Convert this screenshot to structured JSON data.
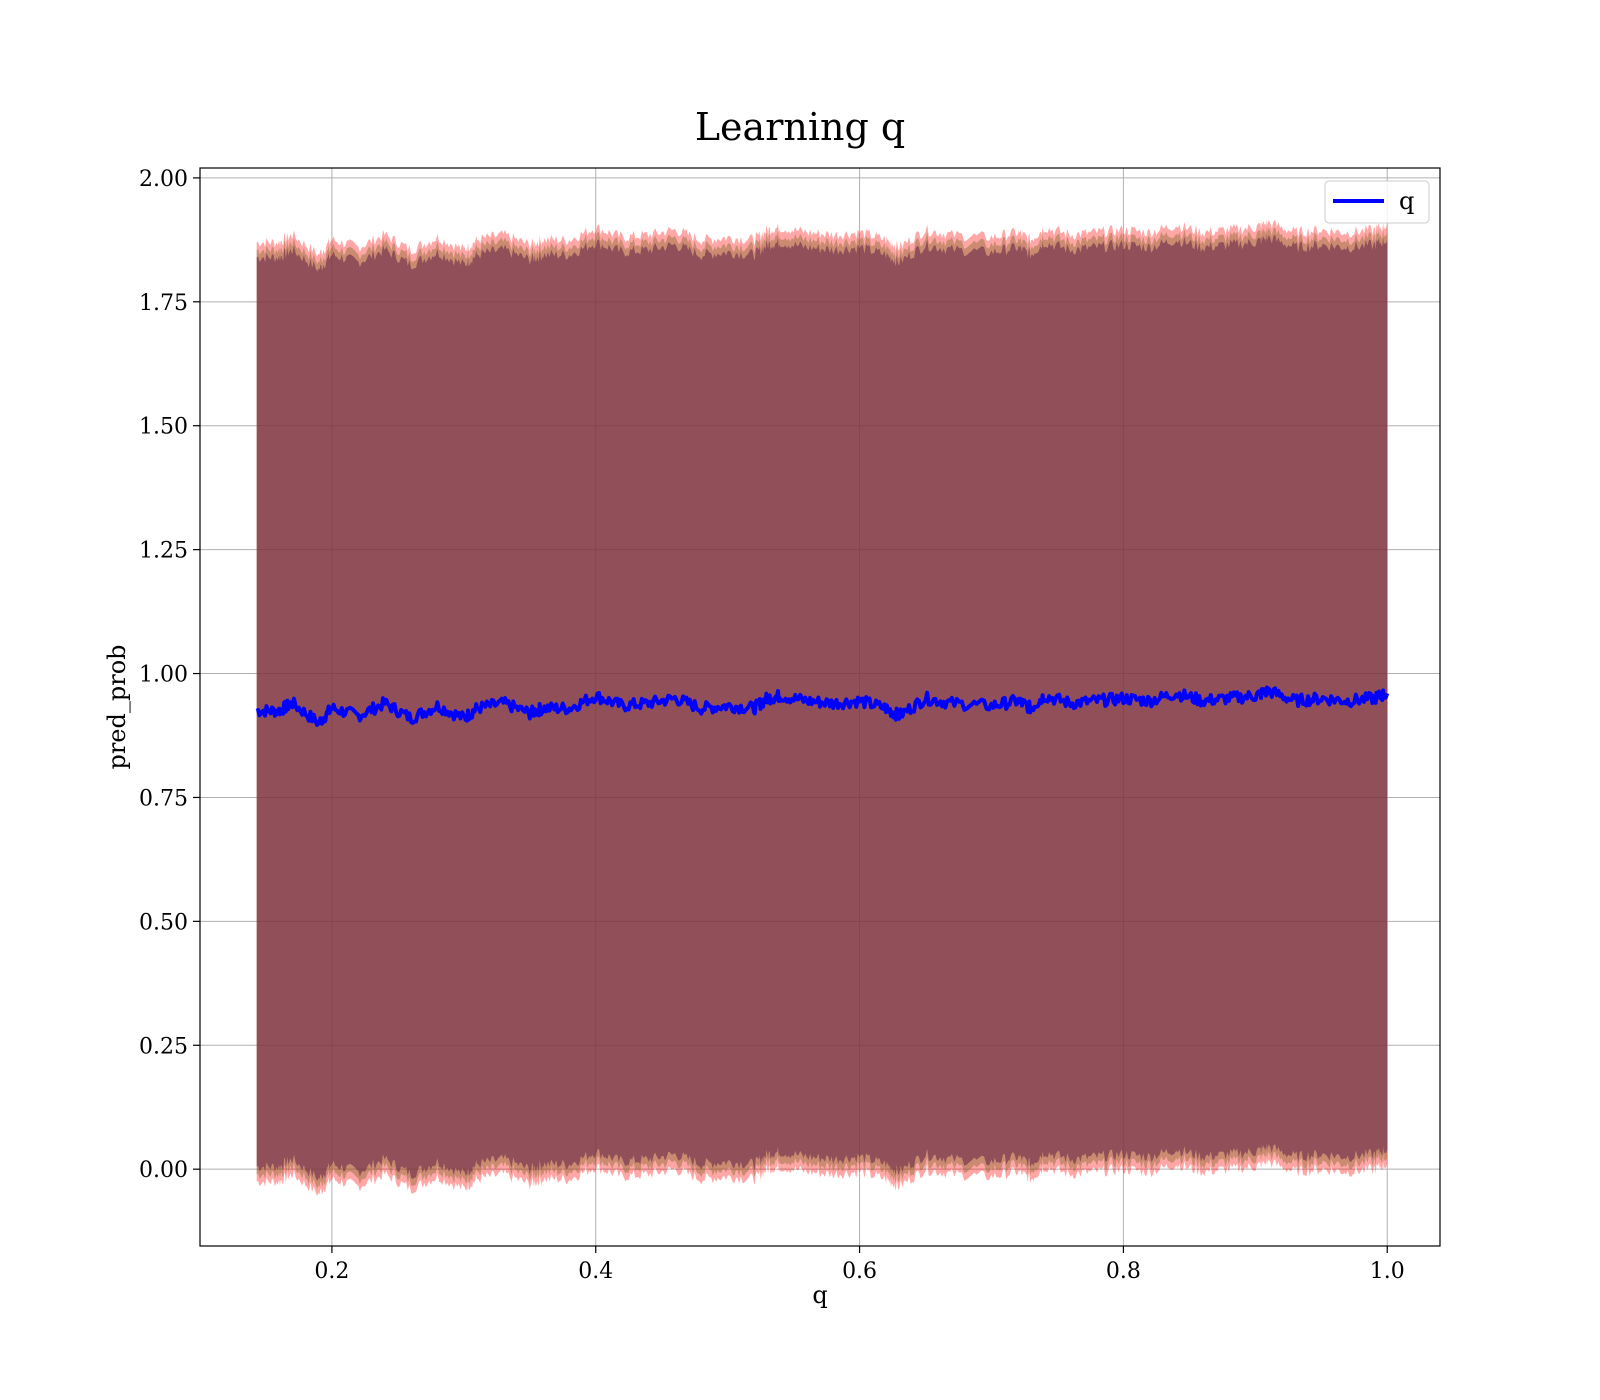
{
  "chart_data": {
    "type": "line",
    "title": "Learning q",
    "xlabel": "q",
    "ylabel": "pred_prob",
    "xlim": [
      0.1,
      1.04
    ],
    "ylim": [
      -0.155,
      2.02
    ],
    "x_ticks": [
      0.2,
      0.4,
      0.6,
      0.8,
      1.0
    ],
    "x_tick_labels": [
      "0.2",
      "0.4",
      "0.6",
      "0.8",
      "1.0"
    ],
    "y_ticks": [
      0.0,
      0.25,
      0.5,
      0.75,
      1.0,
      1.25,
      1.5,
      1.75,
      2.0
    ],
    "y_tick_labels": [
      "0.00",
      "0.25",
      "0.50",
      "0.75",
      "1.00",
      "1.25",
      "1.50",
      "1.75",
      "2.00"
    ],
    "grid": true,
    "legend": {
      "position": "top-right",
      "entries": [
        "q"
      ]
    },
    "series": [
      {
        "name": "q",
        "color": "#0000ff",
        "x": [
          0.143,
          0.16,
          0.17,
          0.19,
          0.2,
          0.22,
          0.24,
          0.26,
          0.28,
          0.3,
          0.31,
          0.33,
          0.35,
          0.36,
          0.38,
          0.4,
          0.42,
          0.44,
          0.46,
          0.48,
          0.5,
          0.52,
          0.53,
          0.54,
          0.56,
          0.58,
          0.6,
          0.62,
          0.63,
          0.65,
          0.67,
          0.7,
          0.72,
          0.73,
          0.74,
          0.76,
          0.78,
          0.8,
          0.82,
          0.84,
          0.86,
          0.88,
          0.9,
          0.91,
          0.93,
          0.95,
          0.97,
          0.99,
          1.0
        ],
        "y": [
          0.925,
          0.925,
          0.94,
          0.9,
          0.93,
          0.915,
          0.94,
          0.91,
          0.935,
          0.91,
          0.93,
          0.94,
          0.92,
          0.93,
          0.93,
          0.955,
          0.935,
          0.94,
          0.95,
          0.93,
          0.935,
          0.93,
          0.95,
          0.955,
          0.945,
          0.94,
          0.945,
          0.93,
          0.915,
          0.95,
          0.94,
          0.935,
          0.945,
          0.93,
          0.955,
          0.94,
          0.945,
          0.95,
          0.945,
          0.96,
          0.945,
          0.95,
          0.955,
          0.965,
          0.945,
          0.95,
          0.945,
          0.95,
          0.96
        ]
      }
    ],
    "bands": [
      {
        "color": "#ff0000",
        "opacity": 0.35,
        "upper_offset": 0.945,
        "lower_offset": -0.95
      },
      {
        "color": "#8b6b2e",
        "opacity": 0.45,
        "upper_offset": 0.93,
        "lower_offset": -0.935
      },
      {
        "color": "#6b2a4a",
        "opacity": 0.6,
        "upper_offset": 0.915,
        "lower_offset": -0.92
      }
    ]
  }
}
